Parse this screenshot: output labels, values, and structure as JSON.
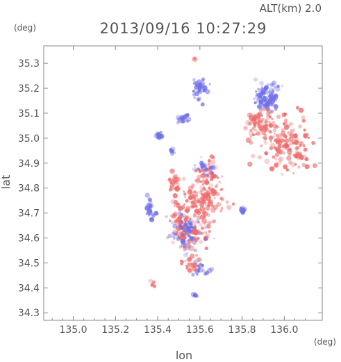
{
  "header": {
    "alt_label": "ALT(km)  2.0",
    "timestamp": "2013/09/16 10:27:29",
    "y_unit": "(deg)",
    "x_unit": "(deg)"
  },
  "chart_data": {
    "type": "scatter",
    "title": "2013/09/16 10:27:29",
    "xlabel": "lon",
    "ylabel": "lat",
    "xlim": [
      134.86,
      136.18
    ],
    "ylim": [
      34.27,
      35.37
    ],
    "x_ticks": [
      "135.0",
      "135.2",
      "135.4",
      "135.6",
      "135.8",
      "136.0"
    ],
    "x_tick_values": [
      135.0,
      135.2,
      135.4,
      135.6,
      135.8,
      136.0
    ],
    "y_ticks": [
      "34.3",
      "34.4",
      "34.5",
      "34.6",
      "34.7",
      "34.8",
      "34.9",
      "35.0",
      "35.1",
      "35.2",
      "35.3"
    ],
    "y_tick_values": [
      34.3,
      34.4,
      34.5,
      34.6,
      34.7,
      34.8,
      34.9,
      35.0,
      35.1,
      35.2,
      35.3
    ],
    "grid": false,
    "colors": {
      "positive": "#ee6a6a",
      "negative": "#6f6fe8",
      "frame": "#888888",
      "text": "#555555"
    },
    "clusters": [
      {
        "sign": "negative",
        "lon": 135.6,
        "lat": 35.2,
        "spread_lon": 0.03,
        "spread_lat": 0.04,
        "count": 40
      },
      {
        "sign": "negative",
        "lon": 135.52,
        "lat": 35.08,
        "spread_lon": 0.02,
        "spread_lat": 0.02,
        "count": 22
      },
      {
        "sign": "negative",
        "lon": 135.4,
        "lat": 35.01,
        "spread_lon": 0.02,
        "spread_lat": 0.01,
        "count": 18
      },
      {
        "sign": "negative",
        "lon": 135.47,
        "lat": 34.95,
        "spread_lon": 0.01,
        "spread_lat": 0.01,
        "count": 10
      },
      {
        "sign": "negative",
        "lon": 135.92,
        "lat": 35.16,
        "spread_lon": 0.05,
        "spread_lat": 0.05,
        "count": 90
      },
      {
        "sign": "positive",
        "lon": 136.0,
        "lat": 34.98,
        "spread_lon": 0.12,
        "spread_lat": 0.1,
        "count": 160
      },
      {
        "sign": "positive",
        "lon": 135.88,
        "lat": 35.06,
        "spread_lon": 0.05,
        "spread_lat": 0.04,
        "count": 50
      },
      {
        "sign": "positive",
        "lon": 135.6,
        "lat": 34.75,
        "spread_lon": 0.1,
        "spread_lat": 0.06,
        "count": 120
      },
      {
        "sign": "positive",
        "lon": 135.55,
        "lat": 34.63,
        "spread_lon": 0.08,
        "spread_lat": 0.06,
        "count": 110
      },
      {
        "sign": "negative",
        "lon": 135.53,
        "lat": 34.62,
        "spread_lon": 0.06,
        "spread_lat": 0.06,
        "count": 60
      },
      {
        "sign": "positive",
        "lon": 135.64,
        "lat": 34.85,
        "spread_lon": 0.05,
        "spread_lat": 0.05,
        "count": 50
      },
      {
        "sign": "negative",
        "lon": 135.62,
        "lat": 34.88,
        "spread_lon": 0.04,
        "spread_lat": 0.03,
        "count": 20
      },
      {
        "sign": "negative",
        "lon": 135.37,
        "lat": 34.72,
        "spread_lon": 0.02,
        "spread_lat": 0.04,
        "count": 25
      },
      {
        "sign": "positive",
        "lon": 135.48,
        "lat": 34.82,
        "spread_lon": 0.03,
        "spread_lat": 0.04,
        "count": 30
      },
      {
        "sign": "negative",
        "lon": 135.6,
        "lat": 34.47,
        "spread_lon": 0.04,
        "spread_lat": 0.03,
        "count": 25
      },
      {
        "sign": "positive",
        "lon": 135.55,
        "lat": 34.5,
        "spread_lon": 0.04,
        "spread_lat": 0.03,
        "count": 25
      },
      {
        "sign": "negative",
        "lon": 135.8,
        "lat": 34.71,
        "spread_lon": 0.01,
        "spread_lat": 0.01,
        "count": 10
      },
      {
        "sign": "negative",
        "lon": 135.58,
        "lat": 34.37,
        "spread_lon": 0.01,
        "spread_lat": 0.005,
        "count": 8
      },
      {
        "sign": "positive",
        "lon": 135.38,
        "lat": 34.42,
        "spread_lon": 0.01,
        "spread_lat": 0.01,
        "count": 6
      },
      {
        "sign": "positive",
        "lon": 135.58,
        "lat": 35.32,
        "spread_lon": 0.005,
        "spread_lat": 0.005,
        "count": 3
      }
    ]
  }
}
